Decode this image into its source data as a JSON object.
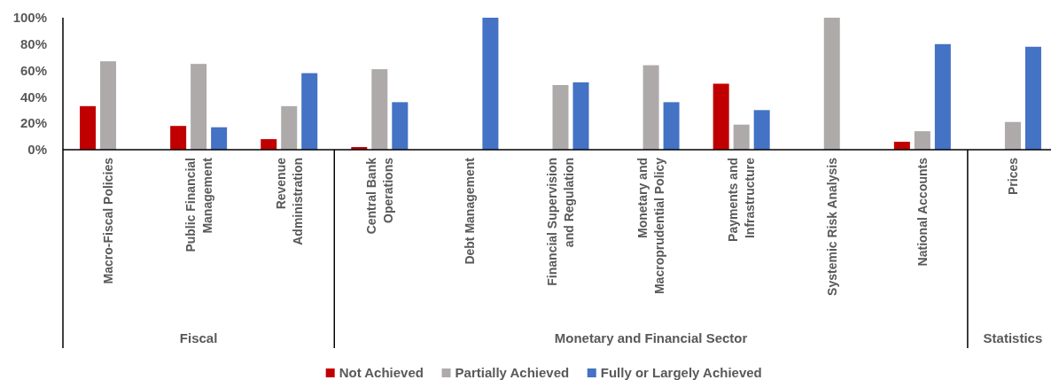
{
  "chart_data": {
    "type": "bar",
    "categories": [
      "Macro-Fiscal Policies",
      "Public Financial\nManagement",
      "Revenue\nAdministration",
      "Central Bank\nOperations",
      "Debt Management",
      "Financial Supervision\nand Regulation",
      "Monetary and\nMacroprudential Policy",
      "Payments and\nInfrastructure",
      "Systemic Risk Analysis",
      "National Accounts",
      "Prices"
    ],
    "series": [
      {
        "name": "Not Achieved",
        "color": "#c00000",
        "values": [
          33,
          18,
          8,
          2,
          null,
          null,
          null,
          50,
          null,
          6,
          null
        ]
      },
      {
        "name": "Partially Achieved",
        "color": "#aeaaaa",
        "values": [
          67,
          65,
          33,
          61,
          null,
          49,
          64,
          19,
          100,
          14,
          21
        ]
      },
      {
        "name": "Fully or Largely Achieved",
        "color": "#4472c4",
        "values": [
          null,
          17,
          58,
          36,
          100,
          51,
          36,
          30,
          null,
          80,
          78
        ]
      }
    ],
    "ylim": [
      0,
      100
    ],
    "yticks": [
      {
        "value": 0,
        "label": "0%"
      },
      {
        "value": 20,
        "label": "20%"
      },
      {
        "value": 40,
        "label": "40%"
      },
      {
        "value": 60,
        "label": "60%"
      },
      {
        "value": 80,
        "label": "80%"
      },
      {
        "value": 100,
        "label": "100%"
      }
    ],
    "annotations": [
      "Fiscal",
      "Monetary and Financial Sector",
      "Statistics"
    ],
    "legend": "bottom"
  }
}
